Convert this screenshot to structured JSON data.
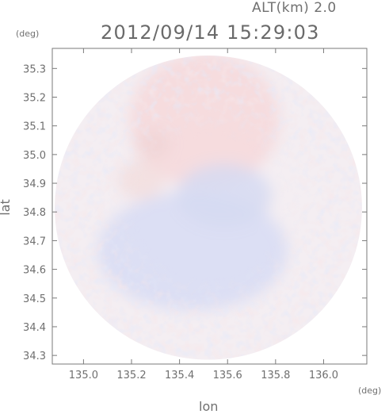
{
  "header": {
    "altitude": "ALT(km) 2.0",
    "timestamp": "2012/09/14 15:29:03"
  },
  "chart_data": {
    "type": "heatmap",
    "title": "2012/09/14 15:29:03",
    "subtitle": "ALT(km) 2.0",
    "xlabel": "lon",
    "ylabel": "lat",
    "x_unit": "(deg)",
    "y_unit": "(deg)",
    "xlim": [
      134.87,
      136.18
    ],
    "ylim": [
      34.27,
      35.37
    ],
    "x_ticks": [
      135.0,
      135.2,
      135.4,
      135.6,
      135.8,
      136.0
    ],
    "x_tick_labels": [
      "135.0",
      "135.2",
      "135.4",
      "135.6",
      "135.8",
      "136.0"
    ],
    "y_ticks": [
      34.3,
      34.4,
      34.5,
      34.6,
      34.7,
      34.8,
      34.9,
      35.0,
      35.1,
      35.2,
      35.3
    ],
    "y_tick_labels": [
      "34.3",
      "34.4",
      "34.5",
      "34.6",
      "34.7",
      "34.8",
      "34.9",
      "35.0",
      "35.1",
      "35.2",
      "35.3"
    ],
    "grid": false,
    "radar_coverage": {
      "center": [
        135.52,
        34.815
      ],
      "radius_lon_deg": 0.64,
      "radius_lat_deg": 0.53
    },
    "colors": {
      "positive": "#f2c3c3",
      "negative": "#c6cff0",
      "neutral": "#f4eef2",
      "axis": "#7a7a7a"
    }
  }
}
